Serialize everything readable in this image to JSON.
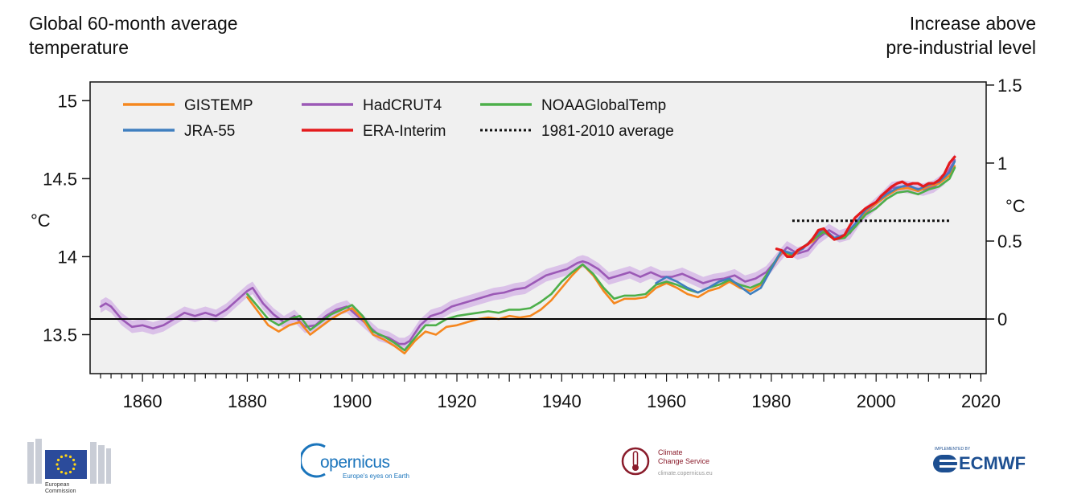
{
  "titles": {
    "left_line1": "Global 60-month average",
    "left_line2": "temperature",
    "right_line1": "Increase above",
    "right_line2": "pre-industrial level"
  },
  "axes": {
    "left_unit": "°C",
    "right_unit": "°C"
  },
  "logos": {
    "ec_label_1": "European",
    "ec_label_2": "Commission",
    "copernicus_word": "opernicus",
    "copernicus_tagline": "Europe's eyes on Earth",
    "c3s_line1": "Climate",
    "c3s_line2": "Change Service",
    "c3s_url": "climate.copernicus.eu",
    "ecmwf_small": "IMPLEMENTED BY",
    "ecmwf_word": "ECMWF"
  },
  "colors": {
    "GISTEMP": "#f5871f",
    "HadCRUT4": "#9b59b6",
    "HadCRUT4_band": "#d6b8e6",
    "NOAAGlobalTemp": "#4daf4a",
    "JRA-55": "#3f7fbf",
    "ERA-Interim": "#e41a1c",
    "plot_bg": "#f0f0f0",
    "baseline": "#000000",
    "ec_blue": "#2b4b9b",
    "copernicus_blue": "#1b75bc",
    "c3s_red": "#8a1c2b",
    "ecmwf_blue": "#1d4f91"
  },
  "chart_data": {
    "type": "line",
    "x_ticks": [
      1860,
      1880,
      1900,
      1920,
      1940,
      1960,
      1980,
      2000,
      2020
    ],
    "y_ticks_left": [
      13.5,
      14,
      14.5,
      15
    ],
    "y_ticks_left_labels": [
      "13.5",
      "14",
      "14.5",
      "15"
    ],
    "y_ticks_right": [
      0,
      0.5,
      1,
      1.5
    ],
    "y_ticks_right_labels": [
      "0",
      "0.5",
      "1",
      "1.5"
    ],
    "xlim": [
      1850,
      2021
    ],
    "ylim_left": [
      13.25,
      15.12
    ],
    "right_axis_offset": 13.6,
    "baseline_value": 13.6,
    "legend": [
      {
        "name": "GISTEMP",
        "style": "solid"
      },
      {
        "name": "HadCRUT4",
        "style": "solid"
      },
      {
        "name": "NOAAGlobalTemp",
        "style": "solid"
      },
      {
        "name": "JRA-55",
        "style": "solid"
      },
      {
        "name": "ERA-Interim",
        "style": "solid"
      },
      {
        "name": "1981-2010 average",
        "style": "dotted"
      }
    ],
    "legend_placement": "top-left",
    "reference_line": {
      "name": "1981-2010 average",
      "x": [
        1984,
        2014
      ],
      "y": 14.23
    },
    "series": [
      {
        "name": "HadCRUT4",
        "band_half_width": 0.04,
        "x": [
          1852,
          1853,
          1854,
          1856,
          1858,
          1860,
          1862,
          1864,
          1866,
          1868,
          1870,
          1872,
          1874,
          1876,
          1878,
          1880,
          1881,
          1883,
          1885,
          1887,
          1889,
          1891,
          1893,
          1895,
          1897,
          1899,
          1901,
          1903,
          1905,
          1907,
          1909,
          1910,
          1911,
          1913,
          1915,
          1917,
          1919,
          1921,
          1923,
          1925,
          1927,
          1929,
          1931,
          1933,
          1935,
          1937,
          1939,
          1941,
          1943,
          1944,
          1945,
          1947,
          1949,
          1951,
          1953,
          1955,
          1957,
          1959,
          1961,
          1963,
          1965,
          1967,
          1969,
          1971,
          1973,
          1975,
          1977,
          1979,
          1981,
          1983,
          1985,
          1987,
          1989,
          1991,
          1993,
          1995,
          1997,
          1999,
          2001,
          2003,
          2005,
          2007,
          2009,
          2011,
          2013,
          2015
        ],
        "y": [
          13.68,
          13.7,
          13.68,
          13.6,
          13.55,
          13.56,
          13.54,
          13.56,
          13.6,
          13.64,
          13.62,
          13.64,
          13.62,
          13.66,
          13.72,
          13.78,
          13.8,
          13.7,
          13.63,
          13.58,
          13.62,
          13.55,
          13.56,
          13.62,
          13.66,
          13.68,
          13.62,
          13.56,
          13.5,
          13.48,
          13.44,
          13.44,
          13.46,
          13.56,
          13.62,
          13.64,
          13.68,
          13.7,
          13.72,
          13.74,
          13.76,
          13.77,
          13.79,
          13.8,
          13.84,
          13.88,
          13.9,
          13.92,
          13.96,
          13.97,
          13.96,
          13.92,
          13.86,
          13.88,
          13.9,
          13.87,
          13.9,
          13.87,
          13.87,
          13.89,
          13.86,
          13.83,
          13.85,
          13.86,
          13.88,
          13.84,
          13.86,
          13.9,
          13.98,
          14.06,
          14.02,
          14.04,
          14.12,
          14.17,
          14.13,
          14.15,
          14.25,
          14.31,
          14.37,
          14.44,
          14.45,
          14.44,
          14.43,
          14.45,
          14.5,
          14.62
        ]
      },
      {
        "name": "GISTEMP",
        "x": [
          1880,
          1882,
          1884,
          1886,
          1888,
          1890,
          1892,
          1894,
          1896,
          1898,
          1900,
          1902,
          1904,
          1906,
          1908,
          1910,
          1912,
          1914,
          1916,
          1918,
          1920,
          1922,
          1924,
          1926,
          1928,
          1930,
          1932,
          1934,
          1936,
          1938,
          1940,
          1942,
          1944,
          1946,
          1948,
          1950,
          1952,
          1954,
          1956,
          1958,
          1960,
          1962,
          1964,
          1966,
          1968,
          1970,
          1972,
          1974,
          1976,
          1978,
          1980,
          1982,
          1984,
          1986,
          1988,
          1990,
          1992,
          1994,
          1996,
          1998,
          2000,
          2002,
          2004,
          2006,
          2008,
          2010,
          2012,
          2014,
          2015
        ],
        "y": [
          13.74,
          13.65,
          13.56,
          13.52,
          13.56,
          13.58,
          13.5,
          13.55,
          13.6,
          13.64,
          13.67,
          13.6,
          13.5,
          13.47,
          13.43,
          13.38,
          13.46,
          13.52,
          13.5,
          13.55,
          13.56,
          13.58,
          13.6,
          13.61,
          13.6,
          13.62,
          13.61,
          13.62,
          13.66,
          13.72,
          13.8,
          13.88,
          13.95,
          13.88,
          13.78,
          13.7,
          13.73,
          13.73,
          13.74,
          13.8,
          13.83,
          13.8,
          13.76,
          13.74,
          13.78,
          13.8,
          13.84,
          13.8,
          13.78,
          13.82,
          13.92,
          14.03,
          14.0,
          14.06,
          14.1,
          14.17,
          14.11,
          14.13,
          14.2,
          14.29,
          14.34,
          14.39,
          14.43,
          14.44,
          14.42,
          14.45,
          14.47,
          14.52,
          14.58
        ]
      },
      {
        "name": "NOAAGlobalTemp",
        "x": [
          1880,
          1882,
          1884,
          1886,
          1888,
          1890,
          1892,
          1894,
          1896,
          1898,
          1900,
          1902,
          1904,
          1906,
          1908,
          1910,
          1912,
          1914,
          1916,
          1918,
          1920,
          1922,
          1924,
          1926,
          1928,
          1930,
          1932,
          1934,
          1936,
          1938,
          1940,
          1942,
          1944,
          1946,
          1948,
          1950,
          1952,
          1954,
          1956,
          1958,
          1960,
          1962,
          1964,
          1966,
          1968,
          1970,
          1972,
          1974,
          1976,
          1978,
          1980,
          1982,
          1984,
          1986,
          1988,
          1990,
          1992,
          1994,
          1996,
          1998,
          2000,
          2002,
          2004,
          2006,
          2008,
          2010,
          2012,
          2014,
          2015
        ],
        "y": [
          13.76,
          13.68,
          13.6,
          13.56,
          13.6,
          13.62,
          13.53,
          13.58,
          13.63,
          13.66,
          13.69,
          13.62,
          13.52,
          13.49,
          13.45,
          13.4,
          13.48,
          13.56,
          13.56,
          13.6,
          13.62,
          13.63,
          13.64,
          13.65,
          13.64,
          13.66,
          13.66,
          13.67,
          13.71,
          13.76,
          13.84,
          13.9,
          13.95,
          13.89,
          13.8,
          13.73,
          13.75,
          13.75,
          13.76,
          13.82,
          13.84,
          13.82,
          13.79,
          13.77,
          13.8,
          13.82,
          13.85,
          13.82,
          13.8,
          13.83,
          13.93,
          14.04,
          14.01,
          14.06,
          14.11,
          14.16,
          14.11,
          14.12,
          14.19,
          14.27,
          14.31,
          14.37,
          14.41,
          14.42,
          14.4,
          14.43,
          14.45,
          14.5,
          14.57
        ]
      },
      {
        "name": "JRA-55",
        "x": [
          1958,
          1960,
          1962,
          1964,
          1966,
          1968,
          1970,
          1972,
          1974,
          1976,
          1978,
          1980,
          1982,
          1984,
          1986,
          1988,
          1990,
          1992,
          1994,
          1996,
          1998,
          2000,
          2002,
          2004,
          2006,
          2008,
          2010,
          2012,
          2014,
          2015
        ],
        "y": [
          13.83,
          13.87,
          13.84,
          13.8,
          13.77,
          13.8,
          13.84,
          13.86,
          13.81,
          13.76,
          13.8,
          13.92,
          14.04,
          14.02,
          14.05,
          14.12,
          14.18,
          14.12,
          14.14,
          14.21,
          14.3,
          14.35,
          14.4,
          14.44,
          14.46,
          14.43,
          14.46,
          14.48,
          14.54,
          14.61
        ]
      },
      {
        "name": "ERA-Interim",
        "x": [
          1981,
          1982,
          1983,
          1984,
          1985,
          1986,
          1987,
          1988,
          1989,
          1990,
          1991,
          1992,
          1993,
          1994,
          1995,
          1996,
          1997,
          1998,
          1999,
          2000,
          2001,
          2002,
          2003,
          2004,
          2005,
          2006,
          2007,
          2008,
          2009,
          2010,
          2011,
          2012,
          2013,
          2014,
          2015
        ],
        "y": [
          14.05,
          14.04,
          14.0,
          14.0,
          14.04,
          14.06,
          14.08,
          14.12,
          14.17,
          14.18,
          14.14,
          14.11,
          14.12,
          14.14,
          14.2,
          14.25,
          14.28,
          14.31,
          14.33,
          14.35,
          14.39,
          14.42,
          14.45,
          14.47,
          14.48,
          14.46,
          14.47,
          14.47,
          14.45,
          14.47,
          14.47,
          14.49,
          14.53,
          14.6,
          14.64
        ]
      }
    ]
  }
}
